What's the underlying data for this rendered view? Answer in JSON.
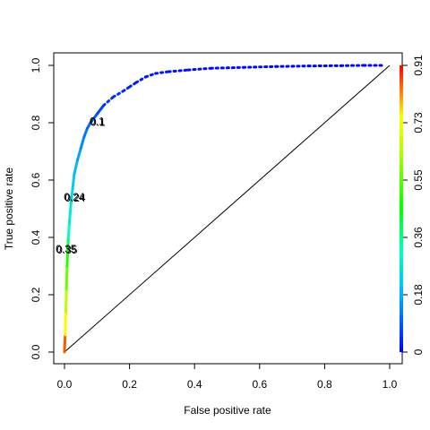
{
  "chart_data": {
    "type": "line",
    "title": "",
    "xlabel": "False positive rate",
    "ylabel": "True positive rate",
    "xlim": [
      0,
      1
    ],
    "ylim": [
      0,
      1
    ],
    "x_ticks": [
      "0.0",
      "0.2",
      "0.4",
      "0.6",
      "0.8",
      "1.0"
    ],
    "y_ticks": [
      "0.0",
      "0.2",
      "0.4",
      "0.6",
      "0.8",
      "1.0"
    ],
    "colorbar_ticks": [
      "0",
      "0.18",
      "0.36",
      "0.55",
      "0.73",
      "0.91"
    ],
    "colorbar_range": [
      0,
      0.91
    ],
    "diagonal": true,
    "grid": false,
    "series": [
      {
        "style": "colorized-dotted-line",
        "x": [
          0,
          0.002,
          0.004,
          0.006,
          0.008,
          0.01,
          0.012,
          0.015,
          0.02,
          0.025,
          0.03,
          0.04,
          0.05,
          0.06,
          0.07,
          0.08,
          0.1,
          0.12,
          0.15,
          0.18,
          0.2,
          0.22,
          0.25,
          0.28,
          0.32,
          0.38,
          0.45,
          0.55,
          0.65,
          0.75,
          0.85,
          0.92,
          0.98
        ],
        "y": [
          0,
          0.06,
          0.14,
          0.22,
          0.3,
          0.36,
          0.4,
          0.45,
          0.52,
          0.57,
          0.62,
          0.67,
          0.71,
          0.75,
          0.78,
          0.8,
          0.83,
          0.86,
          0.89,
          0.91,
          0.925,
          0.94,
          0.96,
          0.972,
          0.978,
          0.984,
          0.99,
          0.993,
          0.996,
          0.998,
          0.999,
          1.0,
          1.0
        ],
        "cutoff": [
          0.91,
          0.8,
          0.7,
          0.6,
          0.52,
          0.45,
          0.35,
          0.3,
          0.27,
          0.24,
          0.21,
          0.18,
          0.15,
          0.13,
          0.11,
          0.1,
          0.08,
          0.06,
          0.05,
          0.04,
          0.035,
          0.03,
          0.025,
          0.02,
          0.018,
          0.015,
          0.012,
          0.01,
          0.008,
          0.006,
          0.004,
          0.002,
          0.0
        ]
      }
    ],
    "annotations": [
      {
        "text": "0.35",
        "x": 0.005,
        "y": 0.36
      },
      {
        "text": "0.24",
        "x": 0.03,
        "y": 0.54
      },
      {
        "text": "0.1",
        "x": 0.1,
        "y": 0.805
      }
    ]
  }
}
